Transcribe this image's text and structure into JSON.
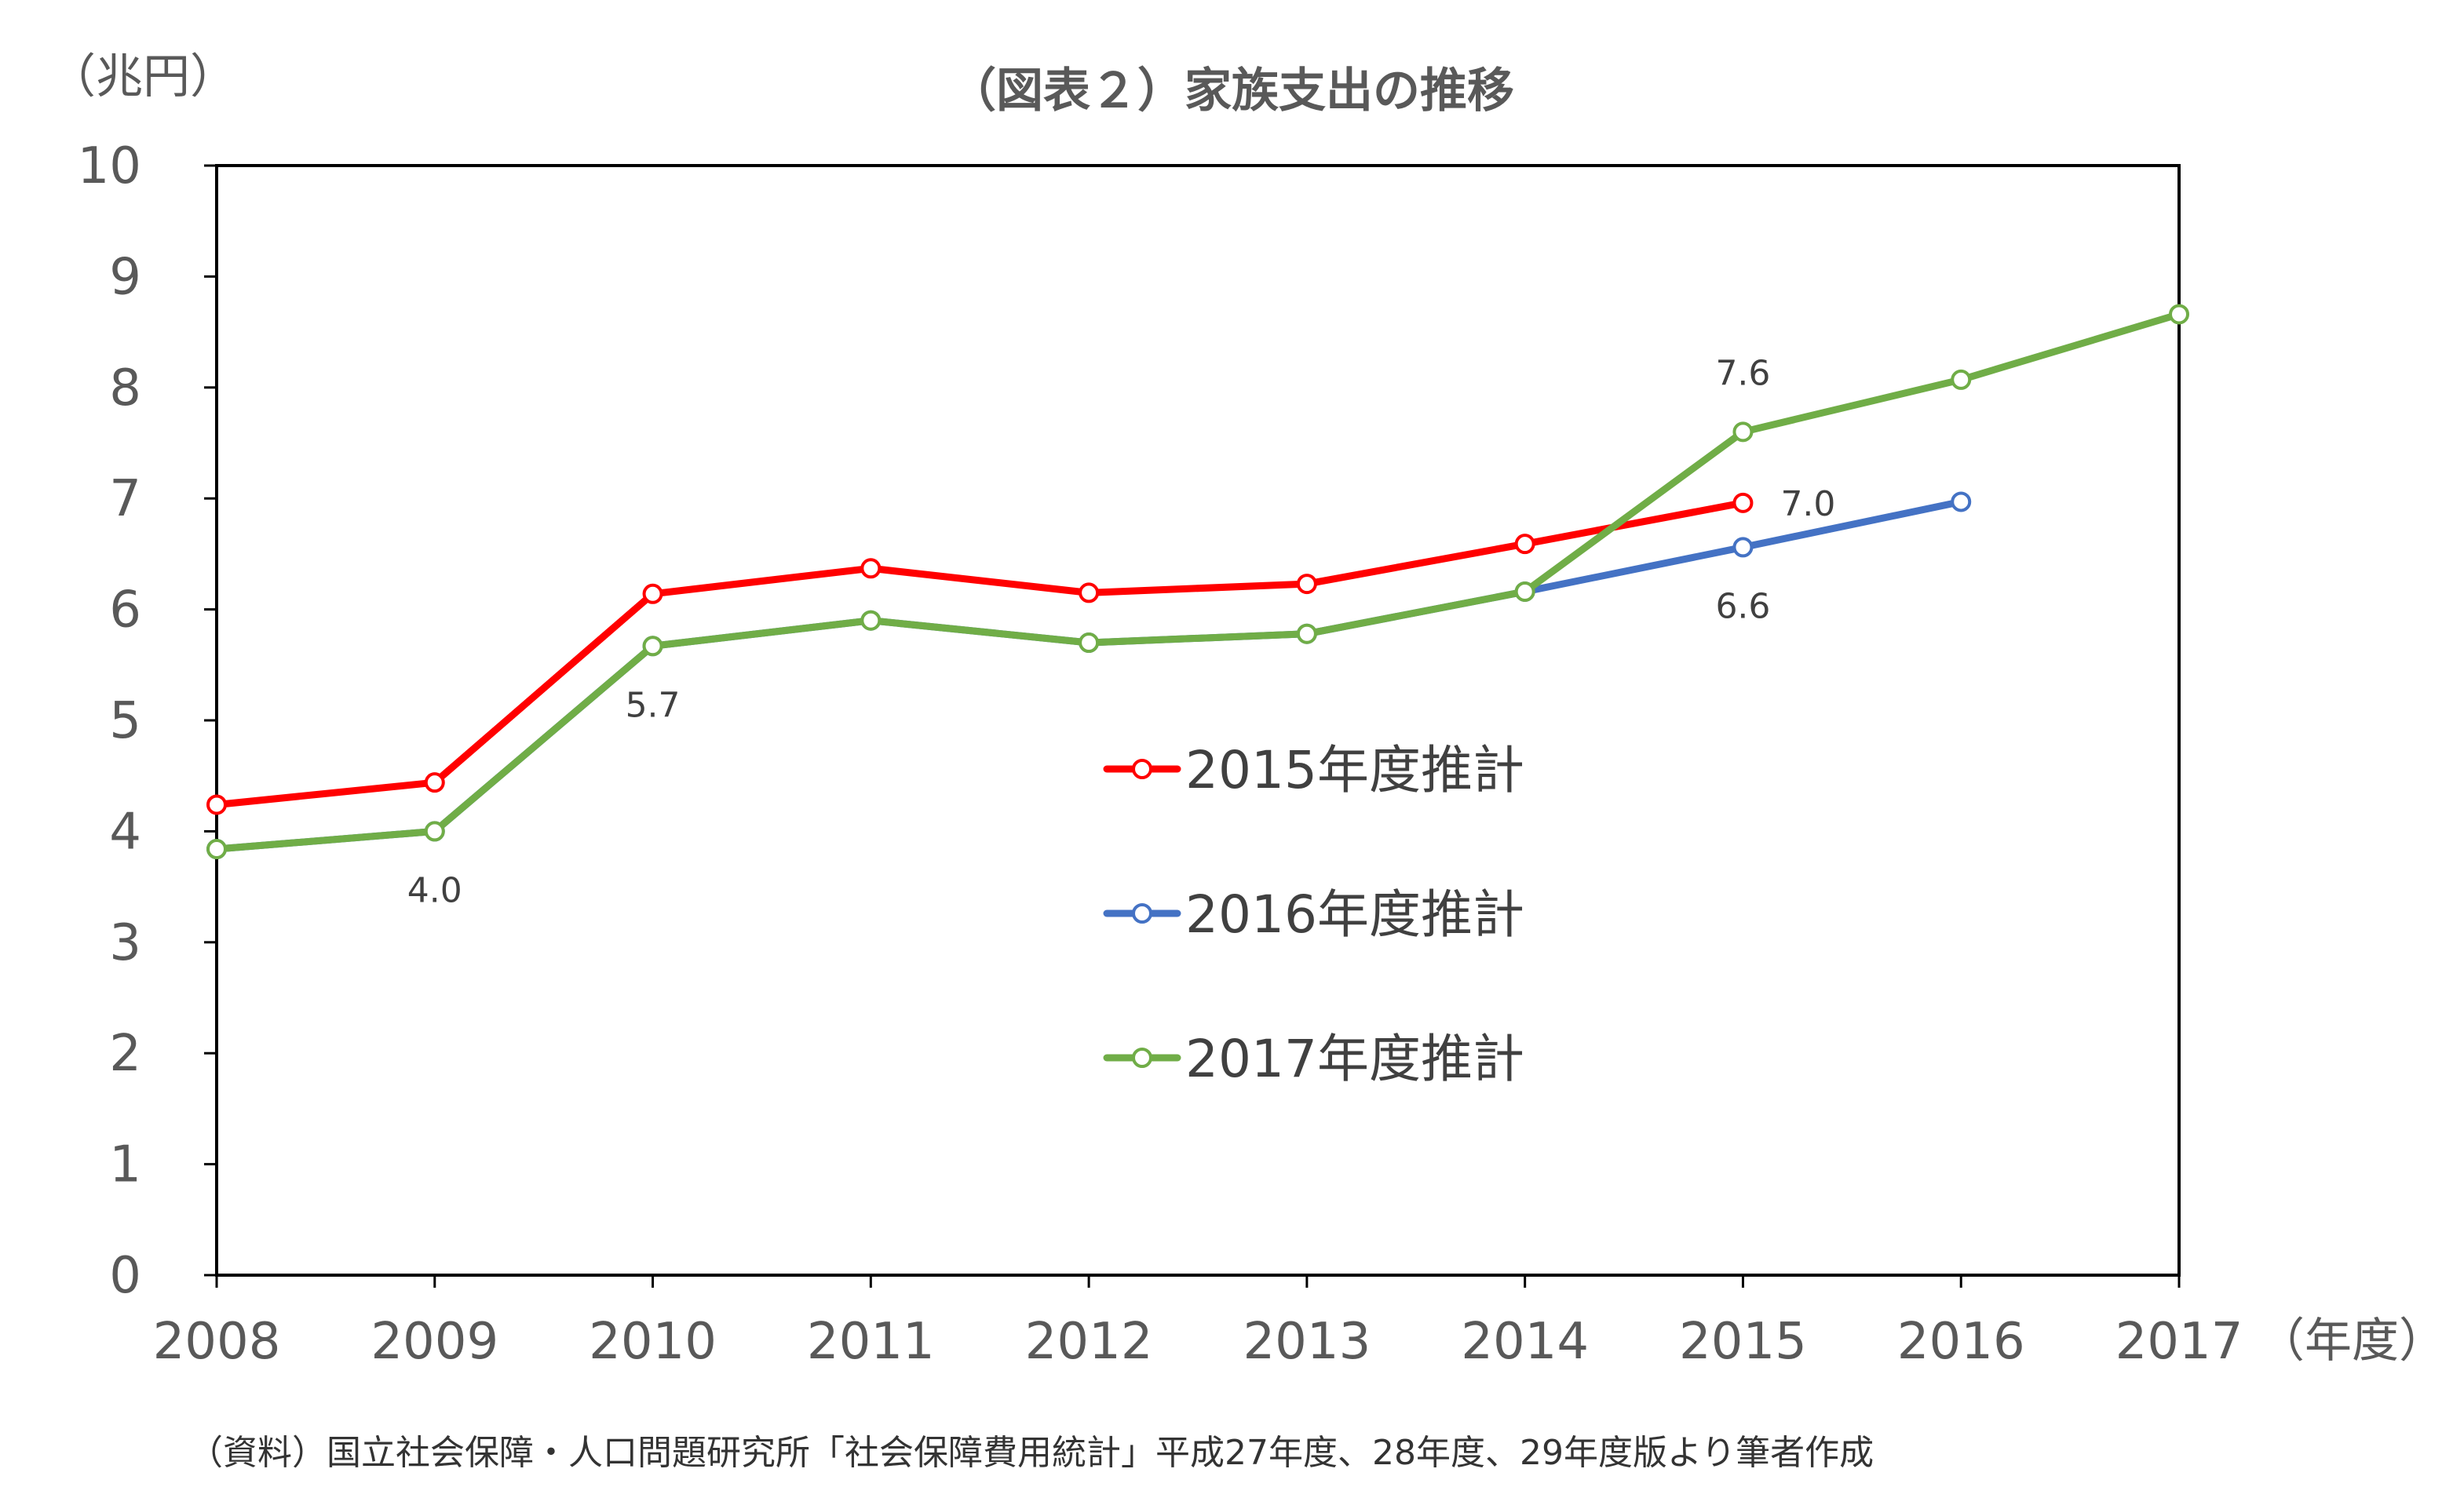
{
  "chart_data": {
    "type": "line",
    "title": "（図表２）家族支出の推移",
    "ylabel": "（兆円）",
    "xlabel": "（年度）",
    "ylim": [
      0,
      10
    ],
    "yticks": [
      0,
      1,
      2,
      3,
      4,
      5,
      6,
      7,
      8,
      9,
      10
    ],
    "categories": [
      "2008",
      "2009",
      "2010",
      "2011",
      "2012",
      "2013",
      "2014",
      "2015",
      "2016",
      "2017"
    ],
    "grid": false,
    "legend_position": "center",
    "series": [
      {
        "name": "2015年度推計",
        "color": "#ff0000",
        "values": [
          4.24,
          4.44,
          6.14,
          6.37,
          6.15,
          6.23,
          6.59,
          6.96,
          null,
          null
        ]
      },
      {
        "name": "2016年度推計",
        "color": "#4472c4",
        "values": [
          3.84,
          4.0,
          5.67,
          5.9,
          5.7,
          5.78,
          6.16,
          6.56,
          6.97,
          null
        ]
      },
      {
        "name": "2017年度推計",
        "color": "#70ad47",
        "values": [
          3.84,
          4.0,
          5.67,
          5.9,
          5.7,
          5.78,
          6.16,
          7.6,
          8.07,
          8.66
        ]
      }
    ],
    "annotations": [
      {
        "text": "4.0",
        "category": "2009",
        "y": 4.0
      },
      {
        "text": "5.7",
        "category": "2010",
        "y": 5.67
      },
      {
        "text": "7.6",
        "category": "2015",
        "y": 7.6
      },
      {
        "text": "7.0",
        "category": "2015",
        "y": 6.96
      },
      {
        "text": "6.6",
        "category": "2015",
        "y": 6.56
      }
    ]
  },
  "source": "（資料）国立社会保障・人口問題研究所「社会保障費用統計」平成27年度、28年度、29年度版より筆者作成"
}
